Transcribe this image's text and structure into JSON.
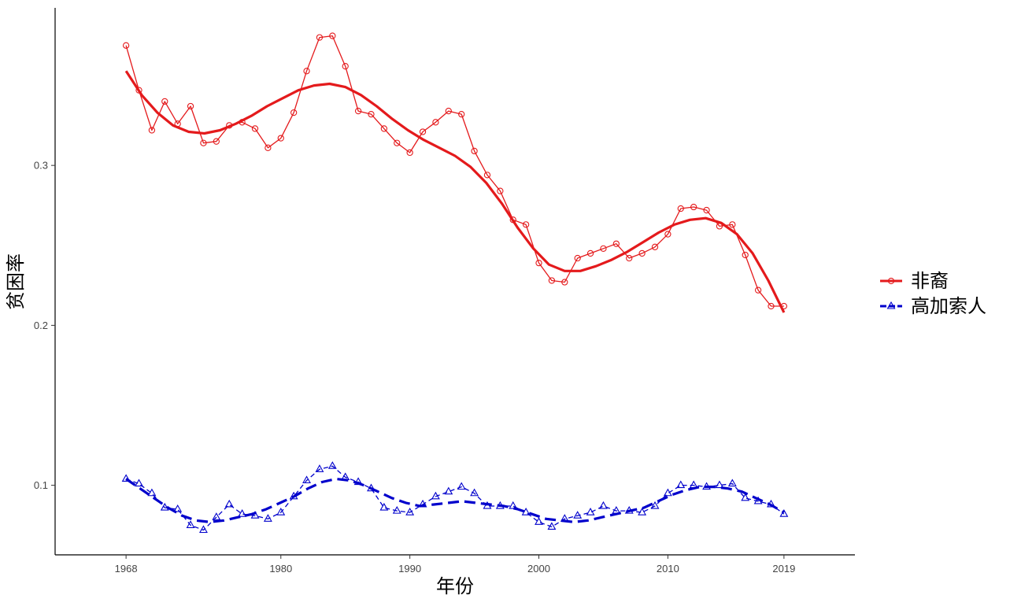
{
  "chart_data": {
    "type": "line",
    "xlabel": "年份",
    "ylabel": "贫困率",
    "xlim": [
      1962.5,
      2024.5
    ],
    "ylim": [
      0.0565,
      0.3985
    ],
    "x_ticks": [
      1968,
      1980,
      1990,
      2000,
      2010,
      2019
    ],
    "y_ticks": [
      0.1,
      0.2,
      0.3
    ],
    "y_tick_labels": [
      "0.1",
      "0.2",
      "0.3"
    ],
    "grid": false,
    "legend_position": "right",
    "x": [
      1968,
      1969,
      1970,
      1971,
      1972,
      1973,
      1974,
      1975,
      1976,
      1977,
      1978,
      1979,
      1980,
      1981,
      1982,
      1983,
      1984,
      1985,
      1986,
      1987,
      1988,
      1989,
      1990,
      1991,
      1992,
      1993,
      1994,
      1995,
      1996,
      1997,
      1998,
      1999,
      2000,
      2001,
      2002,
      2003,
      2004,
      2005,
      2006,
      2007,
      2008,
      2009,
      2010,
      2011,
      2012,
      2013,
      2014,
      2015,
      2016,
      2017,
      2018,
      2019
    ],
    "series": [
      {
        "name": "非裔",
        "color": "#e41a1c",
        "marker": "circle",
        "line_style": "solid",
        "values": [
          0.375,
          0.347,
          0.322,
          0.34,
          0.326,
          0.337,
          0.314,
          0.315,
          0.325,
          0.327,
          0.323,
          0.311,
          0.317,
          0.333,
          0.359,
          0.38,
          0.381,
          0.362,
          0.334,
          0.332,
          0.323,
          0.314,
          0.308,
          0.321,
          0.327,
          0.334,
          0.332,
          0.309,
          0.294,
          0.284,
          0.266,
          0.263,
          0.239,
          0.228,
          0.227,
          0.242,
          0.245,
          0.248,
          0.251,
          0.242,
          0.245,
          0.249,
          0.257,
          0.273,
          0.274,
          0.272,
          0.262,
          0.263,
          0.244,
          0.222,
          0.212,
          0.212
        ],
        "smooth": [
          0.359,
          0.344,
          0.333,
          0.325,
          0.321,
          0.32,
          0.322,
          0.326,
          0.331,
          0.337,
          0.342,
          0.347,
          0.35,
          0.351,
          0.349,
          0.344,
          0.337,
          0.329,
          0.322,
          0.316,
          0.311,
          0.306,
          0.299,
          0.289,
          0.276,
          0.261,
          0.248,
          0.238,
          0.234,
          0.234,
          0.237,
          0.241,
          0.246,
          0.252,
          0.258,
          0.263,
          0.266,
          0.267,
          0.264,
          0.257,
          0.245,
          0.228,
          0.208
        ]
      },
      {
        "name": "高加索人",
        "color": "#0000cc",
        "marker": "triangle",
        "line_style": "dashed",
        "values": [
          0.104,
          0.101,
          0.095,
          0.086,
          0.085,
          0.075,
          0.072,
          0.08,
          0.088,
          0.082,
          0.081,
          0.079,
          0.083,
          0.093,
          0.103,
          0.11,
          0.112,
          0.105,
          0.102,
          0.098,
          0.086,
          0.084,
          0.083,
          0.088,
          0.093,
          0.096,
          0.099,
          0.095,
          0.087,
          0.087,
          0.087,
          0.083,
          0.077,
          0.074,
          0.079,
          0.081,
          0.083,
          0.087,
          0.084,
          0.084,
          0.083,
          0.087,
          0.095,
          0.1,
          0.1,
          0.099,
          0.1,
          0.101,
          0.092,
          0.09,
          0.088,
          0.082
        ],
        "smooth": [
          0.104,
          0.098,
          0.092,
          0.086,
          0.081,
          0.078,
          0.077,
          0.078,
          0.08,
          0.082,
          0.085,
          0.089,
          0.093,
          0.098,
          0.102,
          0.104,
          0.103,
          0.1,
          0.096,
          0.092,
          0.089,
          0.087,
          0.088,
          0.089,
          0.09,
          0.089,
          0.088,
          0.087,
          0.085,
          0.082,
          0.079,
          0.078,
          0.077,
          0.078,
          0.08,
          0.082,
          0.084,
          0.086,
          0.09,
          0.094,
          0.097,
          0.099,
          0.099,
          0.098,
          0.096,
          0.092,
          0.088,
          0.083
        ]
      }
    ]
  }
}
